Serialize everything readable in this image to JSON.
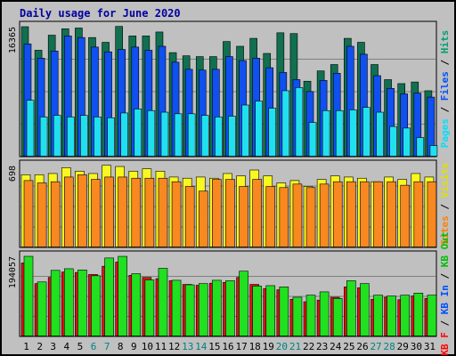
{
  "chart_data": {
    "type": "bar",
    "title": "Daily usage for June 2020",
    "categories": [
      "1",
      "2",
      "3",
      "4",
      "5",
      "6",
      "7",
      "8",
      "9",
      "10",
      "11",
      "12",
      "13",
      "14",
      "15",
      "16",
      "17",
      "18",
      "19",
      "20",
      "21",
      "22",
      "23",
      "24",
      "25",
      "26",
      "27",
      "28",
      "29",
      "30",
      "31"
    ],
    "weekend_days": [
      6,
      7,
      13,
      14,
      20,
      21,
      27,
      28
    ],
    "weekend_color": "#008080",
    "weekday_color": "#000000",
    "panels": [
      {
        "name": "hits-files-pages",
        "ymax_label": "16365",
        "ymax": 16365,
        "side_labels": [
          {
            "text": "Pages",
            "color": "#00e0ff"
          },
          {
            "text": " / ",
            "color": "#000000"
          },
          {
            "text": "Files",
            "color": "#0050ff"
          },
          {
            "text": " / ",
            "color": "#000000"
          },
          {
            "text": "Hits",
            "color": "#00a070"
          }
        ],
        "series": [
          {
            "name": "Hits",
            "color": "#107050",
            "values": [
              16365,
              13400,
              15300,
              16100,
              16200,
              15000,
              14400,
              16400,
              15200,
              15200,
              15700,
              13100,
              12700,
              12600,
              12600,
              14500,
              13900,
              14900,
              13000,
              15600,
              15500,
              9500,
              10800,
              11600,
              14900,
              14400,
              11600,
              9700,
              9200,
              9400,
              8300
            ]
          },
          {
            "name": "Files",
            "color": "#1050f0",
            "values": [
              14200,
              12400,
              13300,
              15200,
              15000,
              13800,
              13200,
              13500,
              13800,
              13400,
              13900,
              11900,
              11000,
              10900,
              11000,
              12600,
              12100,
              12400,
              11200,
              10600,
              9700,
              8200,
              9600,
              10500,
              13900,
              12900,
              10200,
              8600,
              7900,
              8000,
              7500
            ]
          },
          {
            "name": "Pages",
            "color": "#20e0f0",
            "values": [
              7100,
              5000,
              5200,
              5000,
              5200,
              5000,
              4900,
              5500,
              6000,
              5800,
              5600,
              5400,
              5400,
              5200,
              5000,
              5100,
              6500,
              7000,
              6100,
              8300,
              8700,
              4300,
              5800,
              5800,
              5900,
              6200,
              5600,
              3800,
              3600,
              2400,
              1400
            ]
          }
        ]
      },
      {
        "name": "visits-sites",
        "ymax_label": "698",
        "ymax": 698,
        "side_labels": [
          {
            "text": "Sites",
            "color": "#ff8000"
          },
          {
            "text": " / ",
            "color": "#000000"
          },
          {
            "text": "Visits",
            "color": "#e0e000"
          }
        ],
        "series": [
          {
            "name": "Visits",
            "color": "#f8f820",
            "values": [
              620,
              620,
              630,
              680,
              650,
              630,
              700,
              690,
              650,
              670,
              650,
              600,
              590,
              600,
              590,
              630,
              610,
              660,
              610,
              550,
              570,
              520,
              580,
              610,
              600,
              590,
              560,
              600,
              580,
              630,
              600
            ]
          },
          {
            "name": "Sites",
            "color": "#f88820",
            "values": [
              570,
              550,
              560,
              600,
              620,
              580,
              600,
              600,
              590,
              590,
              590,
              560,
              520,
              480,
              580,
              580,
              520,
              580,
              520,
              510,
              540,
              510,
              540,
              560,
              560,
              560,
              560,
              560,
              530,
              560,
              560
            ]
          }
        ]
      },
      {
        "name": "kbytes",
        "ymax_label": "194057",
        "ymax": 194057,
        "side_labels": [
          {
            "text": "KB F",
            "color": "#ff0000"
          },
          {
            "text": " / ",
            "color": "#000000"
          },
          {
            "text": "KB In",
            "color": "#0050ff"
          },
          {
            "text": " / ",
            "color": "#000000"
          },
          {
            "text": "KB Out",
            "color": "#00c000"
          }
        ],
        "series": [
          {
            "name": "KB F",
            "color": "#e01010",
            "values": [
              178000,
              128000,
              143000,
              156000,
              155000,
              150000,
              170000,
              180000,
              148000,
              143000,
              140000,
              135000,
              126000,
              124000,
              129000,
              131000,
              143000,
              126000,
              116000,
              113000,
              90000,
              84000,
              88000,
              95000,
              120000,
              118000,
              90000,
              95000,
              89000,
              98000,
              92000
            ]
          },
          {
            "name": "KB Out",
            "color": "#20e020",
            "values": [
              194057,
              132000,
              160000,
              164000,
              161000,
              147000,
              190000,
              194000,
              152000,
              137000,
              165000,
              136000,
              125000,
              128000,
              136000,
              135000,
              158000,
              122000,
              123000,
              120000,
              95000,
              100000,
              108000,
              92000,
              135000,
              128000,
              100000,
              98000,
              100000,
              105000,
              100000
            ]
          }
        ]
      }
    ]
  }
}
